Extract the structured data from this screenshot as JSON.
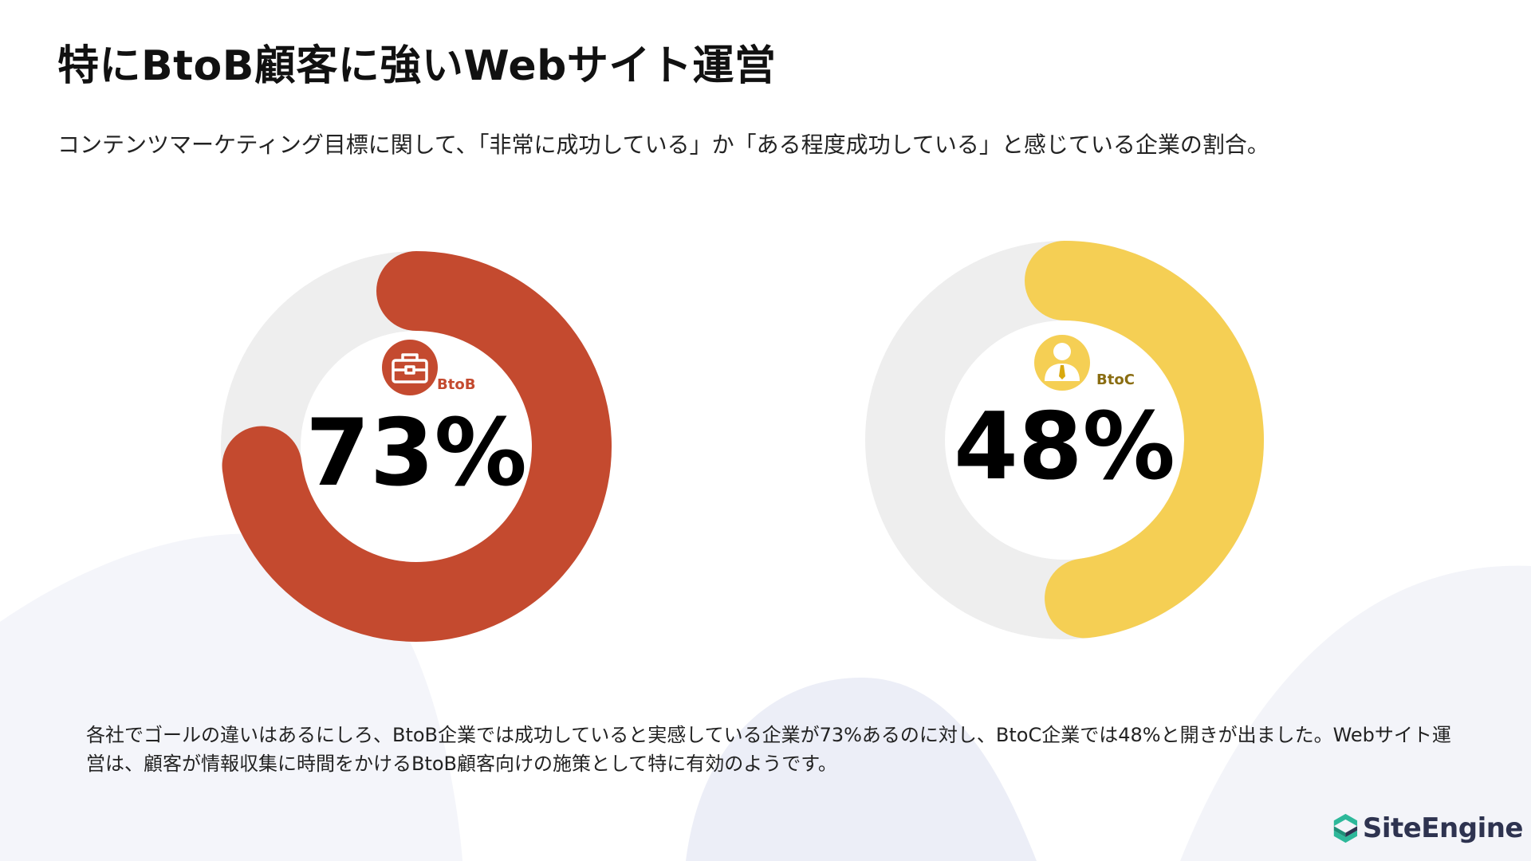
{
  "header": {
    "title": "特にBtoB顧客に強いWebサイト運営",
    "subtitle": "コンテンツマーケティング目標に関して、「非常に成功している」か「ある程度成功している」と感じている企業の割合。"
  },
  "chart_data": [
    {
      "type": "pie",
      "title": "",
      "label": "BtoB",
      "value_text": "73%",
      "value": 73,
      "max": 100,
      "color": "#c44a2f",
      "track_color": "#eeeeee",
      "icon": "briefcase-icon"
    },
    {
      "type": "pie",
      "title": "",
      "label": "BtoC",
      "value_text": "48%",
      "value": 48,
      "max": 100,
      "color": "#f5cf54",
      "track_color": "#eeeeee",
      "icon": "businessperson-icon"
    }
  ],
  "footer": {
    "note": "各社でゴールの違いはあるにしろ、BtoB企業では成功していると実感している企業が73%あるのに対し、BtoC企業では48%と開きが出ました。Webサイト運営は、顧客が情報収集に時間をかけるBtoB顧客向けの施策として特に有効のようです。"
  },
  "brand": {
    "name": "SiteEngine",
    "color": "#2e3350",
    "accent": "#2db89a"
  },
  "colors": {
    "btob_badge": "#c44a2f",
    "btoc_badge": "#f5cf54",
    "btoc_label": "#8a6d12",
    "background_wave": "#eef0f8"
  }
}
